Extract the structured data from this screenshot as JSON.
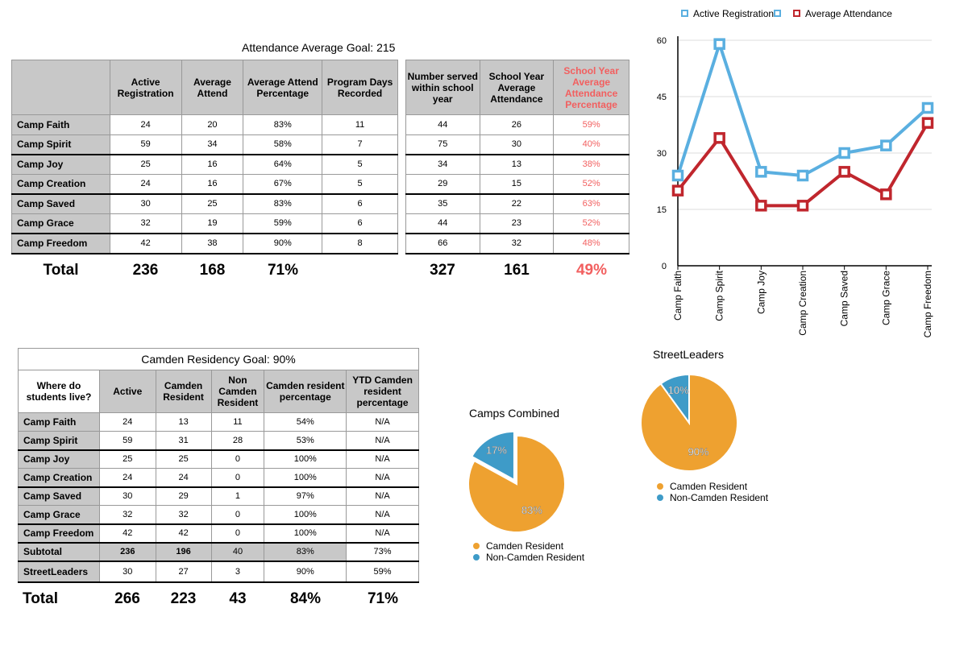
{
  "attendance": {
    "goal": "Attendance Average Goal: 215",
    "headers_a": [
      "",
      "Active Registration",
      "Average Attend",
      "Average Attend Percentage",
      "Program Days Recorded"
    ],
    "headers_b": [
      "Number served within school year",
      "School Year Average Attendance",
      "School Year Average Attendance Percentage"
    ],
    "rows": [
      {
        "camp": "Camp Faith",
        "active": "24",
        "avg": "20",
        "pct": "83%",
        "days": "11",
        "served": "44",
        "sy_avg": "26",
        "sy_pct": "59%"
      },
      {
        "camp": "Camp Spirit",
        "active": "59",
        "avg": "34",
        "pct": "58%",
        "days": "7",
        "served": "75",
        "sy_avg": "30",
        "sy_pct": "40%"
      },
      {
        "camp": "Camp Joy",
        "active": "25",
        "avg": "16",
        "pct": "64%",
        "days": "5",
        "served": "34",
        "sy_avg": "13",
        "sy_pct": "38%"
      },
      {
        "camp": "Camp Creation",
        "active": "24",
        "avg": "16",
        "pct": "67%",
        "days": "5",
        "served": "29",
        "sy_avg": "15",
        "sy_pct": "52%"
      },
      {
        "camp": "Camp Saved",
        "active": "30",
        "avg": "25",
        "pct": "83%",
        "days": "6",
        "served": "35",
        "sy_avg": "22",
        "sy_pct": "63%"
      },
      {
        "camp": "Camp Grace",
        "active": "32",
        "avg": "19",
        "pct": "59%",
        "days": "6",
        "served": "44",
        "sy_avg": "23",
        "sy_pct": "52%"
      },
      {
        "camp": "Camp Freedom",
        "active": "42",
        "avg": "38",
        "pct": "90%",
        "days": "8",
        "served": "66",
        "sy_avg": "32",
        "sy_pct": "48%"
      }
    ],
    "total": {
      "label": "Total",
      "active": "236",
      "avg": "168",
      "pct": "71%",
      "served": "327",
      "sy_avg": "161",
      "sy_pct": "49%"
    }
  },
  "residency": {
    "goal": "Camden Residency Goal: 90%",
    "headers": [
      "Where do students live?",
      "Active",
      "Camden Resident",
      "Non Camden Resident",
      "Camden resident percentage",
      "YTD Camden resident percentage"
    ],
    "rows": [
      {
        "camp": "Camp Faith",
        "active": "24",
        "camden": "13",
        "non": "11",
        "pct": "54%",
        "ytd": "N/A"
      },
      {
        "camp": "Camp Spirit",
        "active": "59",
        "camden": "31",
        "non": "28",
        "pct": "53%",
        "ytd": "N/A"
      },
      {
        "camp": "Camp Joy",
        "active": "25",
        "camden": "25",
        "non": "0",
        "pct": "100%",
        "ytd": "N/A"
      },
      {
        "camp": "Camp Creation",
        "active": "24",
        "camden": "24",
        "non": "0",
        "pct": "100%",
        "ytd": "N/A"
      },
      {
        "camp": "Camp Saved",
        "active": "30",
        "camden": "29",
        "non": "1",
        "pct": "97%",
        "ytd": "N/A"
      },
      {
        "camp": "Camp Grace",
        "active": "32",
        "camden": "32",
        "non": "0",
        "pct": "100%",
        "ytd": "N/A"
      },
      {
        "camp": "Camp Freedom",
        "active": "42",
        "camden": "42",
        "non": "0",
        "pct": "100%",
        "ytd": "N/A"
      }
    ],
    "subtotal": {
      "camp": "Subtotal",
      "active": "236",
      "camden": "196",
      "non": "40",
      "pct": "83%",
      "ytd": "73%"
    },
    "streetleaders": {
      "camp": "StreetLeaders",
      "active": "30",
      "camden": "27",
      "non": "3",
      "pct": "90%",
      "ytd": "59%"
    },
    "total": {
      "label": "Total",
      "active": "266",
      "camden": "223",
      "non": "43",
      "pct": "84%",
      "ytd": "71%"
    }
  },
  "colors": {
    "blue": "#5aafe0",
    "red": "#c0262d",
    "orange": "#eea130",
    "pieblue": "#3e9bc8",
    "grey": "#c8c8c8",
    "pink": "#f25f5f"
  },
  "chart_data": [
    {
      "type": "line",
      "categories": [
        "Camp Faith",
        "Camp Spirit",
        "Camp Joy",
        "Camp Creation",
        "Camp Saved",
        "Camp Grace",
        "Camp Freedom"
      ],
      "series": [
        {
          "name": "Active Registration",
          "values": [
            24,
            59,
            25,
            24,
            30,
            32,
            42
          ],
          "color": "#5aafe0"
        },
        {
          "name": "Average Attendance",
          "values": [
            20,
            34,
            16,
            16,
            25,
            19,
            38
          ],
          "color": "#c0262d"
        }
      ],
      "ylim": [
        0,
        60
      ],
      "yticks": [
        0,
        15,
        30,
        45,
        60
      ],
      "grid": true,
      "legend": "top"
    },
    {
      "type": "pie",
      "title": "Camps Combined",
      "labels": [
        "Camden Resident",
        "Non-Camden Resident"
      ],
      "values": [
        83,
        17
      ],
      "display": [
        "83%",
        "17%"
      ],
      "colors": [
        "#eea130",
        "#3e9bc8"
      ],
      "legend": "bottom"
    },
    {
      "type": "pie",
      "title": "StreetLeaders",
      "labels": [
        "Camden Resident",
        "Non-Camden Resident"
      ],
      "values": [
        90,
        10
      ],
      "display": [
        "90%",
        "10%"
      ],
      "colors": [
        "#eea130",
        "#3e9bc8"
      ],
      "legend": "bottom"
    }
  ]
}
